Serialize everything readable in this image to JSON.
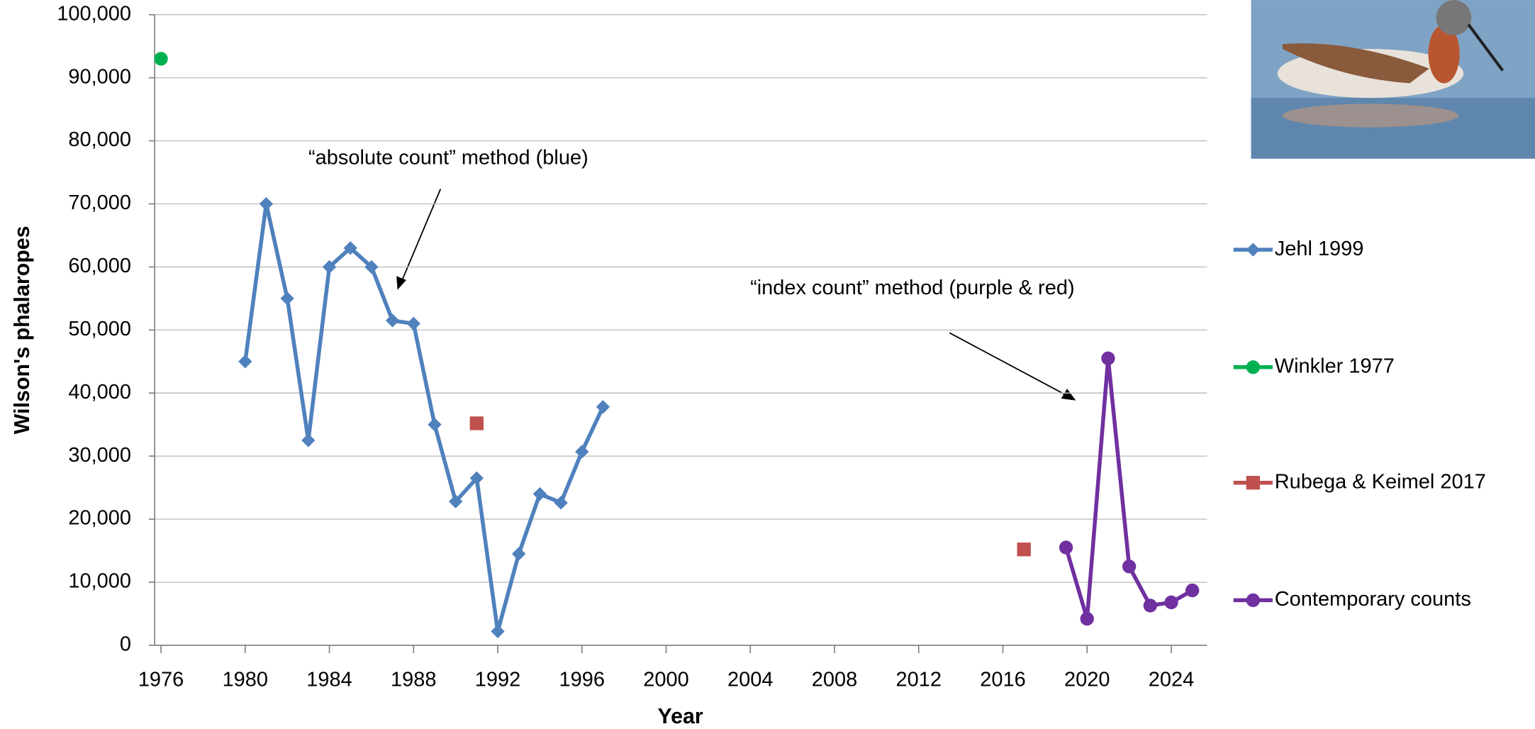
{
  "chart_data": {
    "type": "line",
    "xlabel": "Year",
    "ylabel": "Wilson's phalaropes",
    "xlim": [
      1975.7,
      2025.7
    ],
    "xticks": [
      1976,
      1980,
      1984,
      1988,
      1992,
      1996,
      2000,
      2004,
      2008,
      2012,
      2016,
      2020,
      2024
    ],
    "ylim": [
      0,
      100000
    ],
    "yticks": [
      0,
      {
        "value": 10000,
        "label": "10,000"
      },
      {
        "value": 20000,
        "label": "20,000"
      },
      {
        "value": 30000,
        "label": "30,000"
      },
      {
        "value": 40000,
        "label": "40,000"
      },
      {
        "value": 50000,
        "label": "50,000"
      },
      {
        "value": 60000,
        "label": "60,000"
      },
      {
        "value": 70000,
        "label": "70,000"
      },
      {
        "value": 80000,
        "label": "80,000"
      },
      {
        "value": 90000,
        "label": "90,000"
      },
      {
        "value": 100000,
        "label": "100,000"
      }
    ],
    "grid": true,
    "legend": "right",
    "series": [
      {
        "name": "Jehl 1999",
        "color": "#4f81bd",
        "marker": "diamond",
        "line": true,
        "x": [
          1980,
          1981,
          1982,
          1983,
          1984,
          1985,
          1986,
          1987,
          1988,
          1989,
          1990,
          1991,
          1992,
          1993,
          1994,
          1995,
          1996,
          1997
        ],
        "values": [
          45000,
          70000,
          55000,
          32500,
          60000,
          63000,
          60000,
          51500,
          51000,
          35000,
          22800,
          26500,
          2200,
          14500,
          24000,
          22600,
          30700,
          37800
        ]
      },
      {
        "name": "Winkler 1977",
        "color": "#00b050",
        "marker": "circle",
        "line": false,
        "x": [
          1976
        ],
        "values": [
          93000
        ]
      },
      {
        "name": "Rubega & Keimel 2017",
        "color": "#c0504d",
        "marker": "square",
        "line": false,
        "x": [
          1991,
          2017
        ],
        "values": [
          35200,
          15200
        ]
      },
      {
        "name": "Contemporary counts",
        "color": "#7030a0",
        "marker": "circle",
        "line": true,
        "x": [
          2019,
          2020,
          2021,
          2022,
          2023,
          2024,
          2025
        ],
        "values": [
          15500,
          4200,
          45500,
          12500,
          6300,
          6800,
          8700
        ]
      }
    ],
    "annotations": [
      "“absolute count” method (blue)",
      "“index count” method (purple & red)"
    ]
  }
}
